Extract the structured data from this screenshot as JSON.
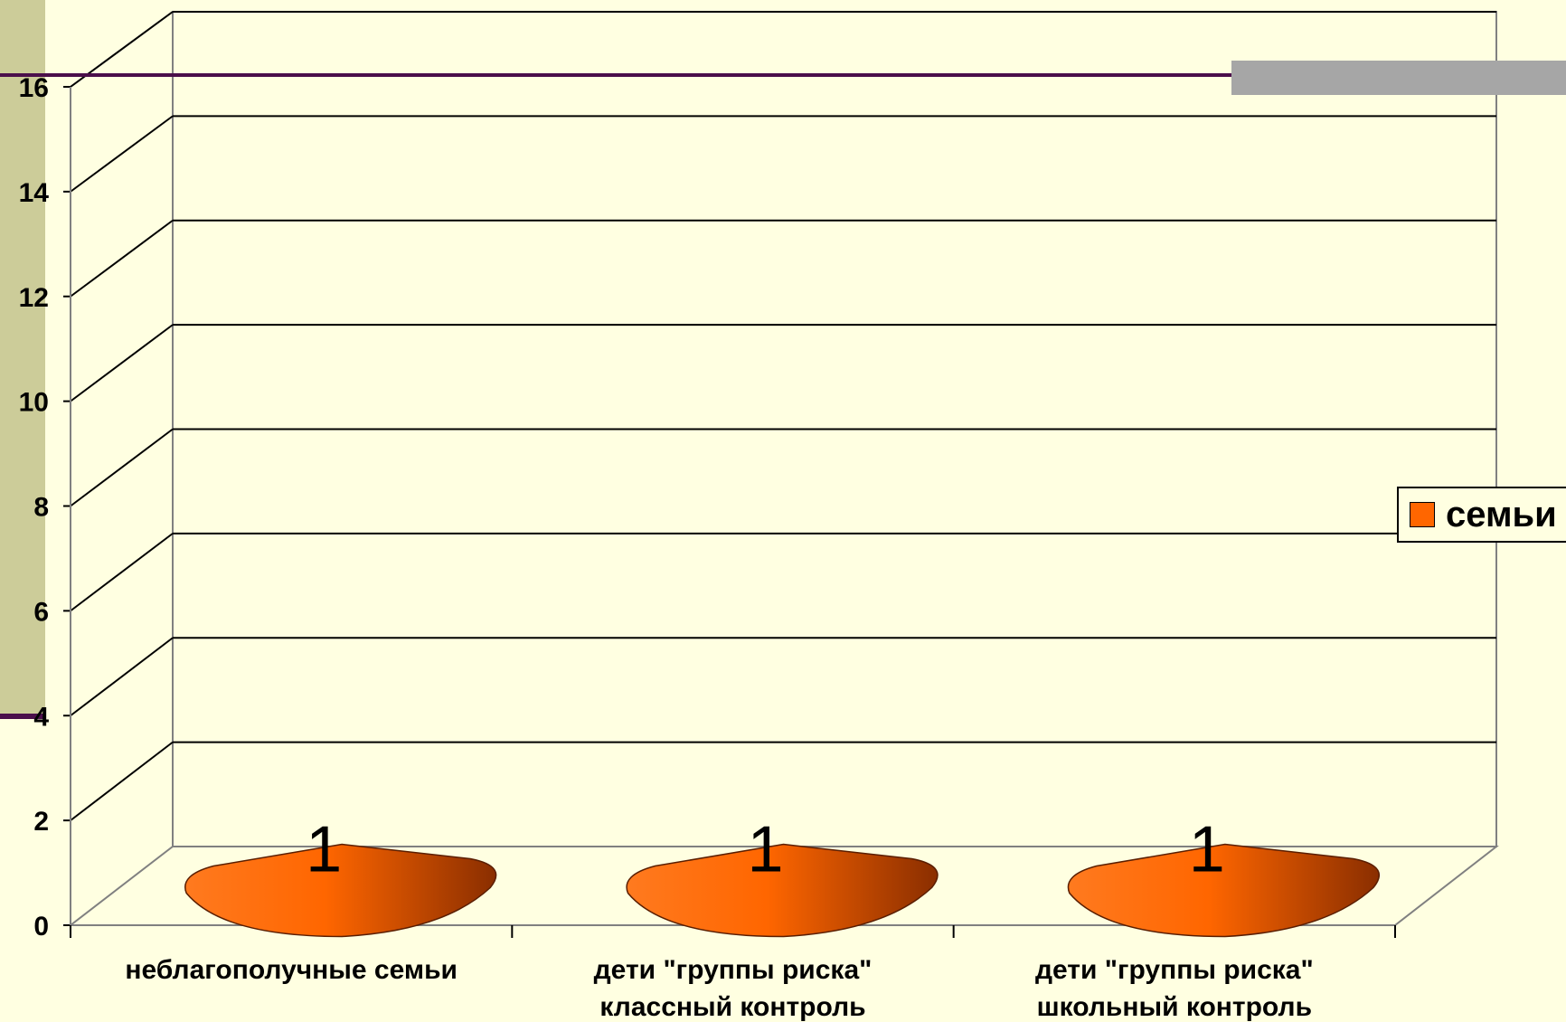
{
  "colors": {
    "background": "#FFFFE1",
    "accent_line": "#4B0F4B",
    "side_bar": "#CCCC99",
    "series": "#FF6600",
    "gray_bar": "#A6A6A6"
  },
  "chart_data": {
    "type": "bar",
    "shape": "3d-cone",
    "categories": [
      [
        "неблагополучные семьи"
      ],
      [
        "дети \"группы риска\"",
        "классный контроль"
      ],
      [
        "дети \"группы риска\"",
        "школьный контроль"
      ]
    ],
    "series": [
      {
        "name": "семьи",
        "values": [
          1,
          1,
          1
        ]
      }
    ],
    "data_labels": [
      "1",
      "1",
      "1"
    ],
    "ylim": [
      0,
      16
    ],
    "yticks": [
      "0",
      "2",
      "4",
      "6",
      "8",
      "10",
      "12",
      "14",
      "16"
    ],
    "grid": true,
    "legend_position": "right",
    "title": "",
    "xlabel": "",
    "ylabel": ""
  }
}
